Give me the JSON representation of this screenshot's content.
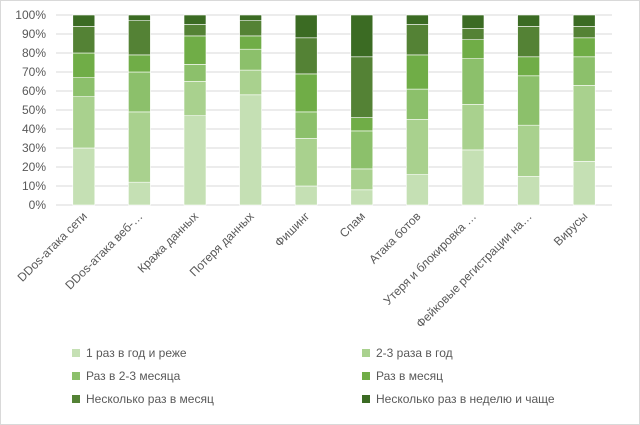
{
  "chart_data": {
    "type": "bar",
    "stacked": true,
    "percent": true,
    "ylim": [
      0,
      100
    ],
    "yticks": [
      "0%",
      "10%",
      "20%",
      "30%",
      "40%",
      "50%",
      "60%",
      "70%",
      "80%",
      "90%",
      "100%"
    ],
    "grid": true,
    "legend_position": "bottom",
    "categories": [
      "DDos-атака сети",
      "DDos-атака веб-…",
      "Кража данных",
      "Потеря данных",
      "Фишинг",
      "Спам",
      "Атака ботов",
      "Утеря и блокировка …",
      "Фейковые регистрации на…",
      "Вирусы"
    ],
    "series": [
      {
        "name": "1 раз в год и реже",
        "color": "#c5e0b4",
        "values": [
          30,
          12,
          47,
          58,
          10,
          8,
          16,
          29,
          15,
          23
        ]
      },
      {
        "name": "2-3 раза в год",
        "color": "#a9d18e",
        "values": [
          27,
          37,
          18,
          13,
          25,
          11,
          29,
          24,
          27,
          40
        ]
      },
      {
        "name": "Раз в 2-3 месяца",
        "color": "#8cc06b",
        "values": [
          10,
          21,
          9,
          11,
          14,
          20,
          16,
          24,
          26,
          15
        ]
      },
      {
        "name": "Раз в месяц",
        "color": "#70ad47",
        "values": [
          13,
          9,
          15,
          7,
          20,
          7,
          18,
          10,
          10,
          10
        ]
      },
      {
        "name": "Несколько раз в месяц",
        "color": "#548235",
        "values": [
          14,
          18,
          6,
          8,
          19,
          32,
          16,
          6,
          16,
          6
        ]
      },
      {
        "name": "Несколько раз в неделю и чаще",
        "color": "#3b6b23",
        "values": [
          6,
          3,
          5,
          3,
          12,
          22,
          5,
          7,
          6,
          6
        ]
      }
    ]
  }
}
